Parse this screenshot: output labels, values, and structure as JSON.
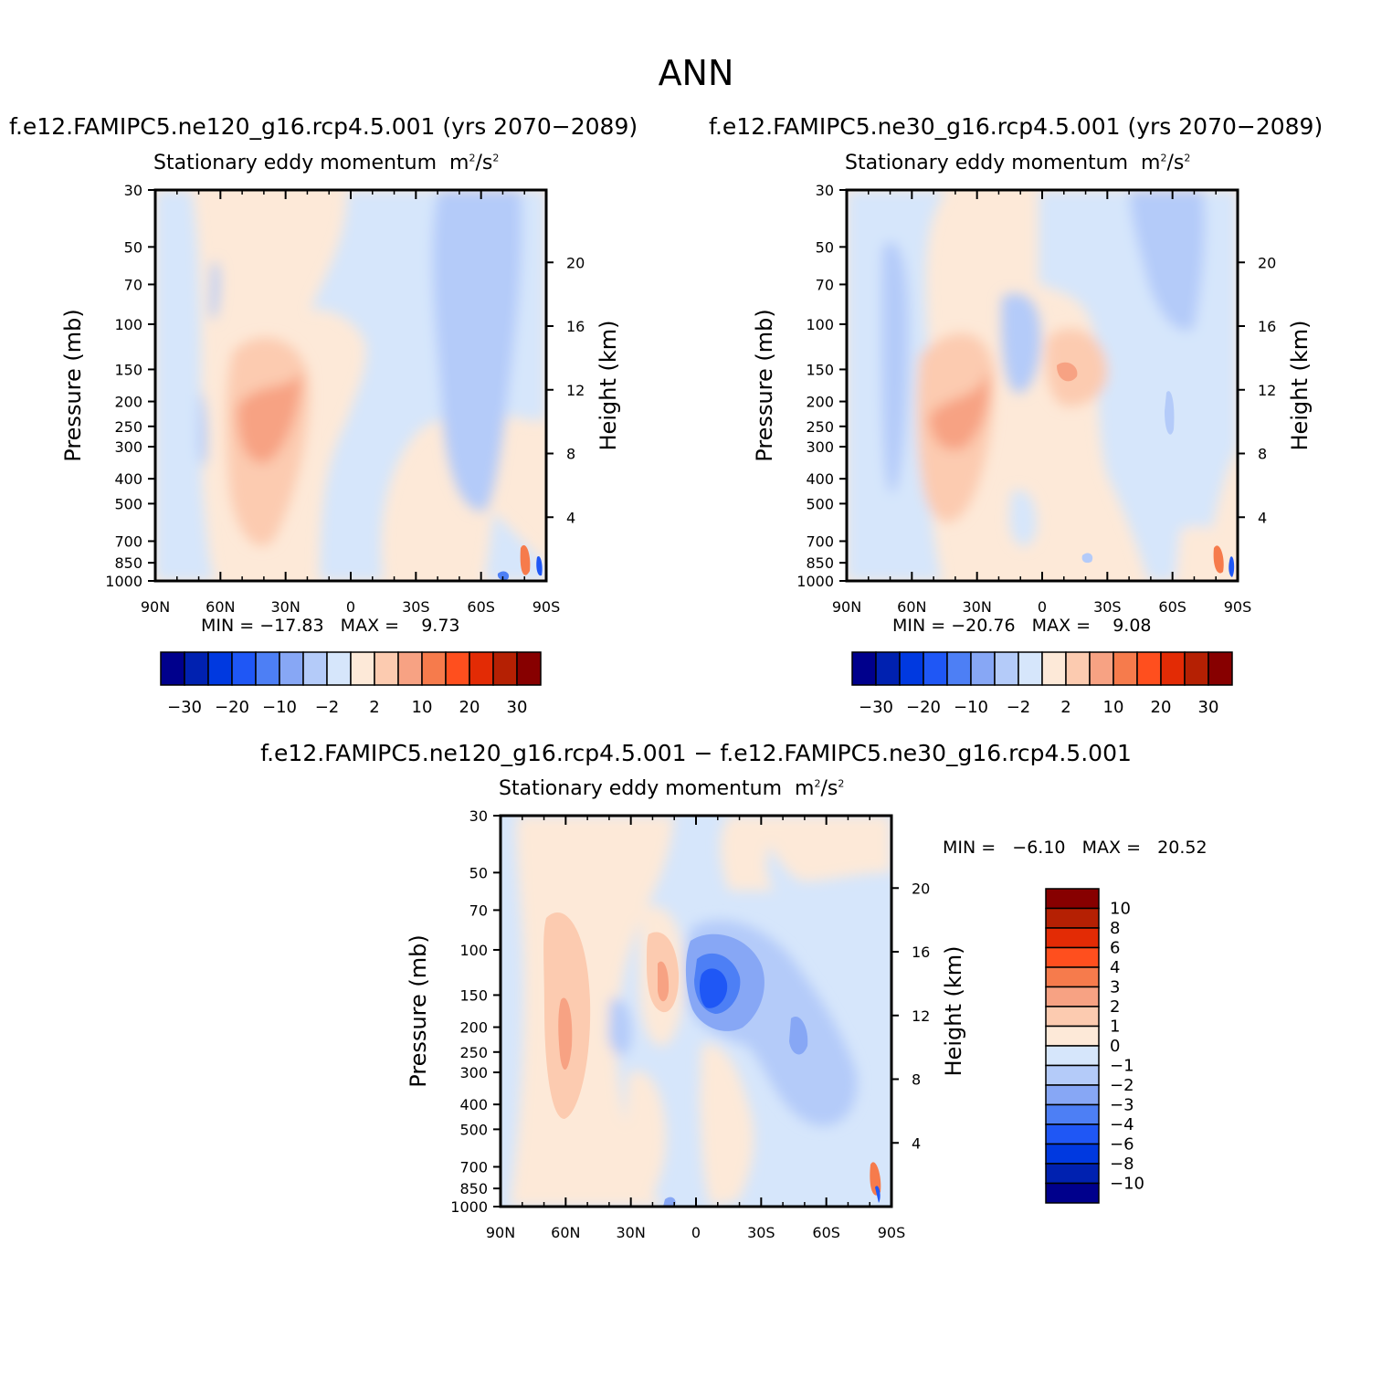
{
  "page_title": "ANN",
  "panels": [
    {
      "title": "f.e12.FAMIPC5.ne120_g16.rcp4.5.001 (yrs 2070−2089)",
      "subtitle": "Stationary eddy momentum",
      "units_base": "m",
      "units_exp": "2",
      "units_mid": "/s",
      "units_exp2": "2",
      "ylabel": "Pressure (mb)",
      "y2label": "Height (km)",
      "min_label": "MIN =",
      "min_value": "−17.83",
      "max_label": "MAX =",
      "max_value": "9.73"
    },
    {
      "title": "f.e12.FAMIPC5.ne30_g16.rcp4.5.001 (yrs 2070−2089)",
      "subtitle": "Stationary eddy momentum",
      "units_base": "m",
      "units_exp": "2",
      "units_mid": "/s",
      "units_exp2": "2",
      "ylabel": "Pressure (mb)",
      "y2label": "Height (km)",
      "min_label": "MIN =",
      "min_value": "−20.76",
      "max_label": "MAX =",
      "max_value": "9.08"
    },
    {
      "title": "f.e12.FAMIPC5.ne120_g16.rcp4.5.001 − f.e12.FAMIPC5.ne30_g16.rcp4.5.001",
      "subtitle": "Stationary eddy momentum",
      "units_base": "m",
      "units_exp": "2",
      "units_mid": "/s",
      "units_exp2": "2",
      "ylabel": "Pressure (mb)",
      "y2label": "Height (km)",
      "min_label": "MIN =",
      "min_value": "−6.10",
      "max_label": "MAX =",
      "max_value": "20.52"
    }
  ],
  "chart_data": [
    {
      "type": "heatmap",
      "title": "f.e12.FAMIPC5.ne120_g16.rcp4.5.001 (yrs 2070−2089)",
      "x_ticks": [
        "90N",
        "60N",
        "30N",
        "0",
        "30S",
        "60S",
        "90S"
      ],
      "y_ticks": [
        "30",
        "50",
        "70",
        "100",
        "150",
        "200",
        "250",
        "300",
        "400",
        "500",
        "700",
        "850",
        "1000"
      ],
      "y2_ticks": [
        "20",
        "16",
        "12",
        "8",
        "4"
      ],
      "ylim": [
        1000,
        30
      ],
      "y_scale": "log",
      "colorbar_labels": [
        "−30",
        "−20",
        "−10",
        "−2",
        "2",
        "10",
        "20",
        "30"
      ],
      "colors": [
        "#00008c",
        "#0021b0",
        "#0039e0",
        "#1f57f5",
        "#4d7ff5",
        "#87a7f5",
        "#b4cbf9",
        "#d6e6fb",
        "#fde9d8",
        "#fccbb0",
        "#f7a283",
        "#f67b4c",
        "#ff4f1e",
        "#e32b05",
        "#b52003",
        "#870000"
      ],
      "min": -17.83,
      "max": 9.73
    },
    {
      "type": "heatmap",
      "title": "f.e12.FAMIPC5.ne30_g16.rcp4.5.001 (yrs 2070−2089)",
      "x_ticks": [
        "90N",
        "60N",
        "30N",
        "0",
        "30S",
        "60S",
        "90S"
      ],
      "y_ticks": [
        "30",
        "50",
        "70",
        "100",
        "150",
        "200",
        "250",
        "300",
        "400",
        "500",
        "700",
        "850",
        "1000"
      ],
      "y2_ticks": [
        "20",
        "16",
        "12",
        "8",
        "4"
      ],
      "ylim": [
        1000,
        30
      ],
      "y_scale": "log",
      "colorbar_labels": [
        "−30",
        "−20",
        "−10",
        "−2",
        "2",
        "10",
        "20",
        "30"
      ],
      "colors": [
        "#00008c",
        "#0021b0",
        "#0039e0",
        "#1f57f5",
        "#4d7ff5",
        "#87a7f5",
        "#b4cbf9",
        "#d6e6fb",
        "#fde9d8",
        "#fccbb0",
        "#f7a283",
        "#f67b4c",
        "#ff4f1e",
        "#e32b05",
        "#b52003",
        "#870000"
      ],
      "min": -20.76,
      "max": 9.08
    },
    {
      "type": "heatmap",
      "title": "f.e12.FAMIPC5.ne120_g16.rcp4.5.001 − f.e12.FAMIPC5.ne30_g16.rcp4.5.001",
      "x_ticks": [
        "90N",
        "60N",
        "30N",
        "0",
        "30S",
        "60S",
        "90S"
      ],
      "y_ticks": [
        "30",
        "50",
        "70",
        "100",
        "150",
        "200",
        "250",
        "300",
        "400",
        "500",
        "700",
        "850",
        "1000"
      ],
      "y2_ticks": [
        "20",
        "16",
        "12",
        "8",
        "4"
      ],
      "ylim": [
        1000,
        30
      ],
      "y_scale": "log",
      "colorbar_labels": [
        "10",
        "8",
        "6",
        "4",
        "3",
        "2",
        "1",
        "0",
        "−1",
        "−2",
        "−3",
        "−4",
        "−6",
        "−8",
        "−10"
      ],
      "colors": [
        "#870000",
        "#b52003",
        "#e32b05",
        "#ff4f1e",
        "#f67b4c",
        "#f7a283",
        "#fccbb0",
        "#fde9d8",
        "#d6e6fb",
        "#b4cbf9",
        "#87a7f5",
        "#4d7ff5",
        "#1f57f5",
        "#0039e0",
        "#0021b0",
        "#00008c"
      ],
      "min": -6.1,
      "max": 20.52
    }
  ]
}
